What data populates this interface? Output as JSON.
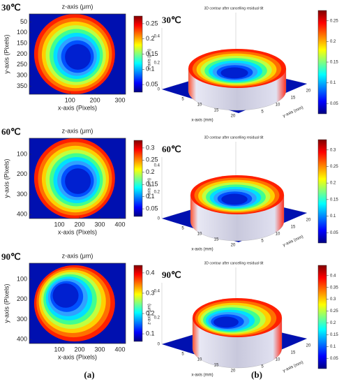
{
  "a": {
    "label": "(a)",
    "plots": [
      {
        "temperature": "30℃",
        "title": "z-axis (μm)",
        "x_label": "x-axis (Pixels)",
        "y_label": "y-axis (Pixels)",
        "x_ticks": [
          100,
          200,
          300
        ],
        "y_ticks": [
          50,
          100,
          150,
          200,
          250,
          300,
          350
        ],
        "colorbar_ticks": [
          0.25,
          0.2,
          0.15,
          0.1,
          0.05
        ]
      },
      {
        "temperature": "60℃",
        "title": "z-axis (μm)",
        "x_label": "x-axis (Pixels)",
        "y_label": "y-axis (Pixels)",
        "x_ticks": [
          100,
          200,
          300,
          400
        ],
        "y_ticks": [
          100,
          200,
          300,
          400
        ],
        "colorbar_ticks": [
          0.3,
          0.25,
          0.2,
          0.15,
          0.1,
          0.05
        ]
      },
      {
        "temperature": "90℃",
        "title": "z-axis (μm)",
        "x_label": "x-axis (Pixels)",
        "y_label": "y-axis (Pixels)",
        "x_ticks": [
          100,
          200,
          300,
          400
        ],
        "y_ticks": [
          100,
          200,
          300,
          400
        ],
        "colorbar_ticks": [
          0.4,
          0.3,
          0.2,
          0.1
        ]
      }
    ]
  },
  "b": {
    "label": "(b)",
    "plots": [
      {
        "temperature": "30℃",
        "title": "3D contour after cancelling residual tilt",
        "x_label": "x-axis (mm)",
        "y_label": "y-axis (mm)",
        "z_label": "z-axis (μm)",
        "x_ticks": [
          5,
          10,
          15,
          20
        ],
        "y_ticks": [
          5,
          10,
          15,
          20
        ],
        "z_ticks": [
          0,
          0.2,
          0.4
        ],
        "colorbar_ticks": [
          0.25,
          0.2,
          0.15,
          0.1,
          0.05
        ]
      },
      {
        "temperature": "60℃",
        "title": "3D contour after cancelling residual tilt",
        "x_label": "x-axis (mm)",
        "y_label": "y-axis (mm)",
        "z_label": "z-axis (μm)",
        "x_ticks": [
          5,
          10,
          15,
          20
        ],
        "y_ticks": [
          5,
          10,
          15,
          20
        ],
        "z_ticks": [
          0,
          0.2,
          0.4
        ],
        "colorbar_ticks": [
          0.3,
          0.25,
          0.2,
          0.15,
          0.1,
          0.05
        ]
      },
      {
        "temperature": "90℃",
        "title": "3D contour after cancelling residual tilt",
        "x_label": "x-axis (mm)",
        "y_label": "y-axis (mm)",
        "z_label": "z-axis (μm)",
        "x_ticks": [
          5,
          10,
          15,
          20
        ],
        "y_ticks": [
          5,
          10,
          15,
          20
        ],
        "z_ticks": [
          0,
          0.2,
          0.4
        ],
        "colorbar_ticks": [
          0.4,
          0.35,
          0.3,
          0.25,
          0.2,
          0.15,
          0.1,
          0.05
        ]
      }
    ]
  }
}
